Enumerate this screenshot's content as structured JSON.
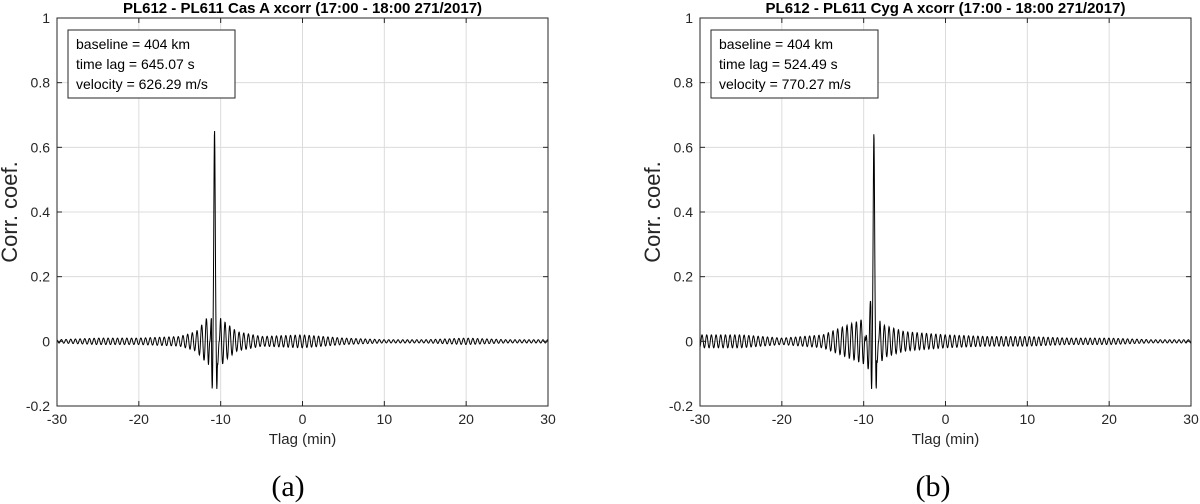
{
  "figure": {
    "panels": [
      {
        "caption": "(a)"
      },
      {
        "caption": "(b)"
      }
    ]
  },
  "chart_data": [
    {
      "type": "line",
      "title": "PL612 - PL611 Cas A xcorr (17:00 - 18:00 271/2017)",
      "xlabel": "Tlag (min)",
      "ylabel": "Corr. coef.",
      "xlim": [
        -30,
        30
      ],
      "ylim": [
        -0.2,
        1
      ],
      "xticks": [
        -30,
        -20,
        -10,
        0,
        10,
        20,
        30
      ],
      "yticks": [
        -0.2,
        0,
        0.2,
        0.4,
        0.6,
        0.8,
        1
      ],
      "grid": true,
      "annotation": [
        "baseline = 404 km",
        "time lag = 645.07 s",
        "velocity = 626.29 m/s"
      ],
      "annotation_position": "top-left",
      "line_color": "#000000",
      "peak": {
        "x": -10.75,
        "y": 0.655
      },
      "series": [
        {
          "x": [
            -30,
            -25,
            -20,
            -15,
            -13,
            -12,
            -11.5,
            -11,
            -10.75,
            -10.5,
            -10,
            -9.5,
            -8,
            -5,
            0,
            5,
            10,
            15,
            20,
            25,
            30
          ],
          "y": [
            0.005,
            0.01,
            0.01,
            0.015,
            0.03,
            0.06,
            0.08,
            -0.14,
            0.655,
            -0.14,
            0.08,
            0.06,
            0.03,
            0.015,
            0.02,
            0.01,
            0.005,
            0.005,
            0.01,
            0.005,
            0.005
          ]
        }
      ]
    },
    {
      "type": "line",
      "title": "PL612 - PL611 Cyg A xcorr (17:00 - 18:00 271/2017)",
      "xlabel": "Tlag (min)",
      "ylabel": "Corr. coef.",
      "xlim": [
        -30,
        30
      ],
      "ylim": [
        -0.2,
        1
      ],
      "xticks": [
        -30,
        -20,
        -10,
        0,
        10,
        20,
        30
      ],
      "yticks": [
        -0.2,
        0,
        0.2,
        0.4,
        0.6,
        0.8,
        1
      ],
      "grid": true,
      "annotation": [
        "baseline = 404 km",
        "time lag = 524.49 s",
        "velocity = 770.27 m/s"
      ],
      "annotation_position": "top-left",
      "line_color": "#000000",
      "peak": {
        "x": -8.75,
        "y": 0.645
      },
      "series": [
        {
          "x": [
            -30,
            -25,
            -20,
            -15,
            -12,
            -10,
            -9.5,
            -9,
            -8.75,
            -8.5,
            -8,
            -7.5,
            -5,
            0,
            5,
            10,
            15,
            20,
            25,
            30
          ],
          "y": [
            0.02,
            0.02,
            0.01,
            0.02,
            0.05,
            0.07,
            -0.08,
            -0.15,
            0.645,
            -0.13,
            0.07,
            0.05,
            0.03,
            0.02,
            0.015,
            0.015,
            0.01,
            0.01,
            0.005,
            0.005
          ]
        }
      ]
    }
  ]
}
